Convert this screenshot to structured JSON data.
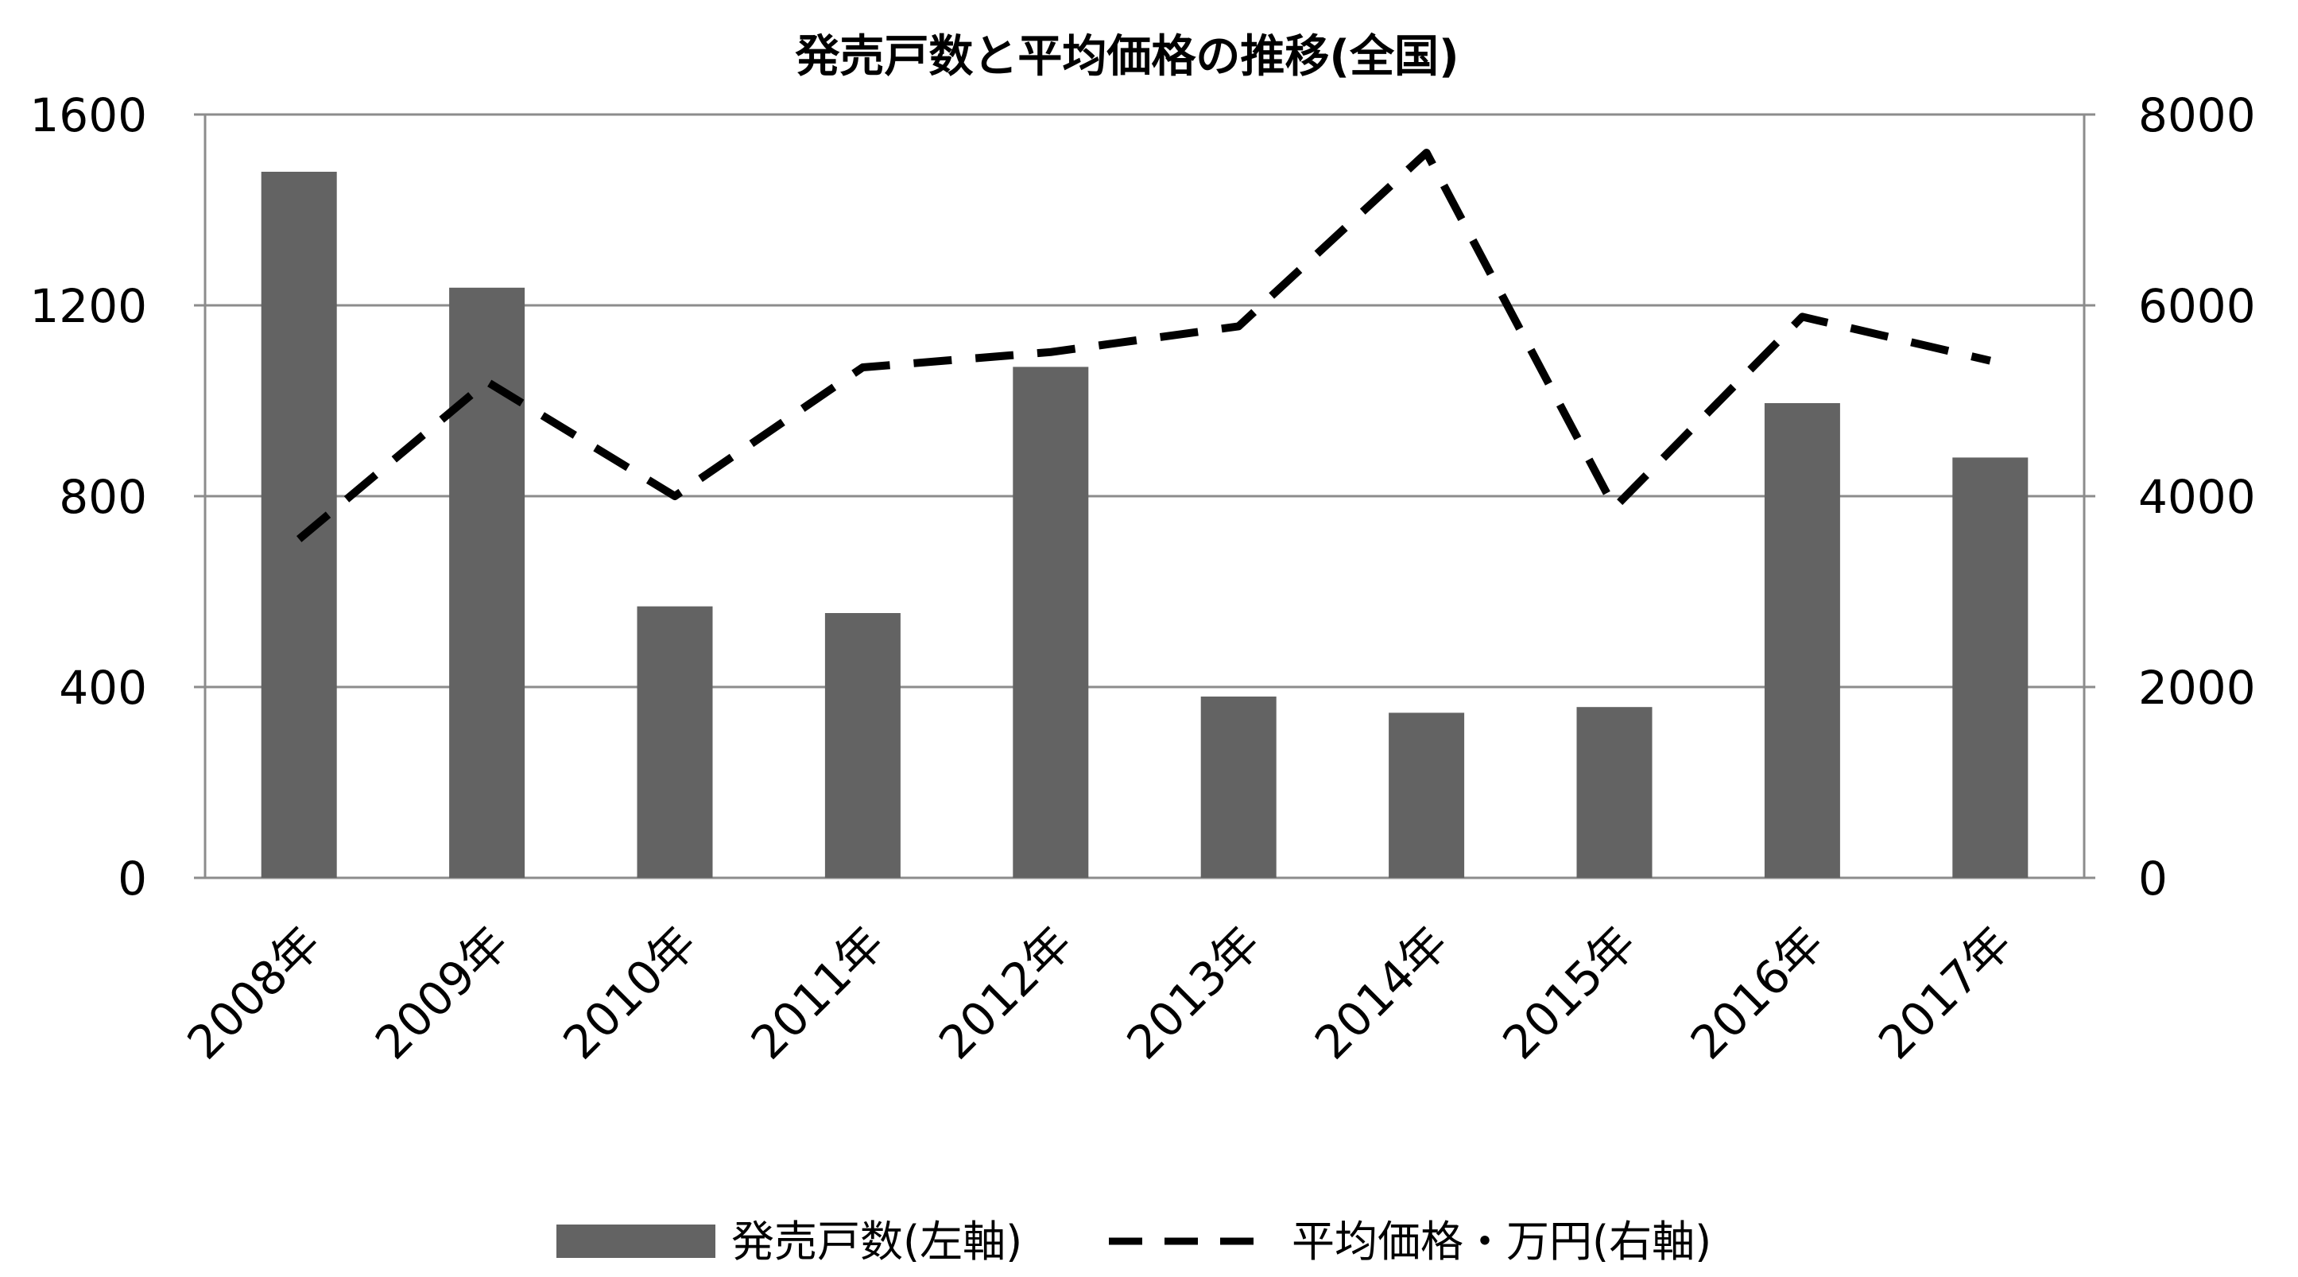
{
  "chart_data": {
    "type": "bar+line",
    "title": "発売戸数と平均価格の推移(全国)",
    "categories": [
      "2008年",
      "2009年",
      "2010年",
      "2011年",
      "2012年",
      "2013年",
      "2014年",
      "2015年",
      "2016年",
      "2017年"
    ],
    "series": [
      {
        "name": "発売戸数(左軸)",
        "type": "bar",
        "axis": "left",
        "color": "#636363",
        "values": [
          1480,
          1237,
          569,
          555,
          1071,
          380,
          346,
          358,
          995,
          881
        ]
      },
      {
        "name": "平均価格・万円(右軸)",
        "type": "line",
        "style": "dashed",
        "axis": "right",
        "color": "#000000",
        "values": [
          3550,
          5200,
          4000,
          5350,
          5510,
          5780,
          7600,
          3880,
          5880,
          5420
        ]
      }
    ],
    "y_left": {
      "min": 0,
      "max": 1600,
      "ticks": [
        0,
        400,
        800,
        1200,
        1600
      ]
    },
    "y_right": {
      "min": 0,
      "max": 8000,
      "ticks": [
        0,
        2000,
        4000,
        6000,
        8000
      ]
    },
    "grid": true,
    "legend_position": "bottom"
  }
}
